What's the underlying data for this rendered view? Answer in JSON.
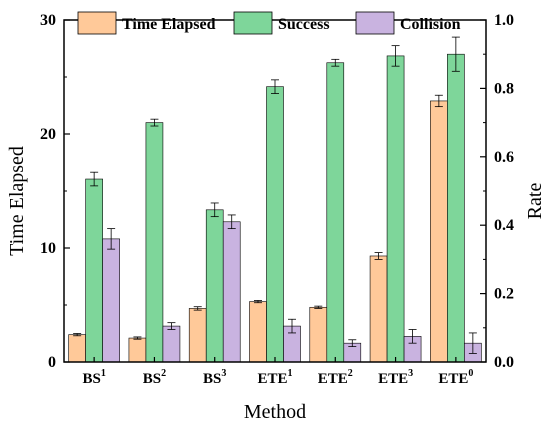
{
  "chart_data": {
    "type": "bar",
    "xlabel": "Method",
    "ylabel_left": "Time Elapsed",
    "ylabel_right": "Rate",
    "ylim_left": [
      0,
      30
    ],
    "ylim_right": [
      0,
      1.0
    ],
    "yticks_left": [
      "0",
      "10",
      "20",
      "30"
    ],
    "yticks_right": [
      "0.0",
      "0.2",
      "0.4",
      "0.6",
      "0.8",
      "1.0"
    ],
    "legend_position": "top",
    "categories": [
      {
        "base": "BS",
        "sup": "1"
      },
      {
        "base": "BS",
        "sup": "2"
      },
      {
        "base": "BS",
        "sup": "3"
      },
      {
        "base": "ETE",
        "sup": "1"
      },
      {
        "base": "ETE",
        "sup": "2"
      },
      {
        "base": "ETE",
        "sup": "3"
      },
      {
        "base": "ETE",
        "sup": "0"
      }
    ],
    "series": [
      {
        "name": "Time Elapsed",
        "axis": "left",
        "color": "#FFC999",
        "values": [
          2.4,
          2.1,
          4.7,
          5.3,
          4.8,
          9.3,
          22.9
        ],
        "errors": [
          0.1,
          0.1,
          0.15,
          0.1,
          0.1,
          0.3,
          0.5
        ]
      },
      {
        "name": "Success",
        "axis": "right",
        "color": "#7ED69A",
        "values": [
          0.535,
          0.7,
          0.445,
          0.805,
          0.875,
          0.895,
          0.9
        ],
        "errors": [
          0.02,
          0.01,
          0.02,
          0.02,
          0.01,
          0.03,
          0.05
        ]
      },
      {
        "name": "Collision",
        "axis": "right",
        "color": "#C9B3E0",
        "values": [
          0.36,
          0.105,
          0.41,
          0.105,
          0.055,
          0.075,
          0.055
        ],
        "errors": [
          0.03,
          0.01,
          0.02,
          0.02,
          0.01,
          0.02,
          0.03
        ]
      }
    ]
  }
}
